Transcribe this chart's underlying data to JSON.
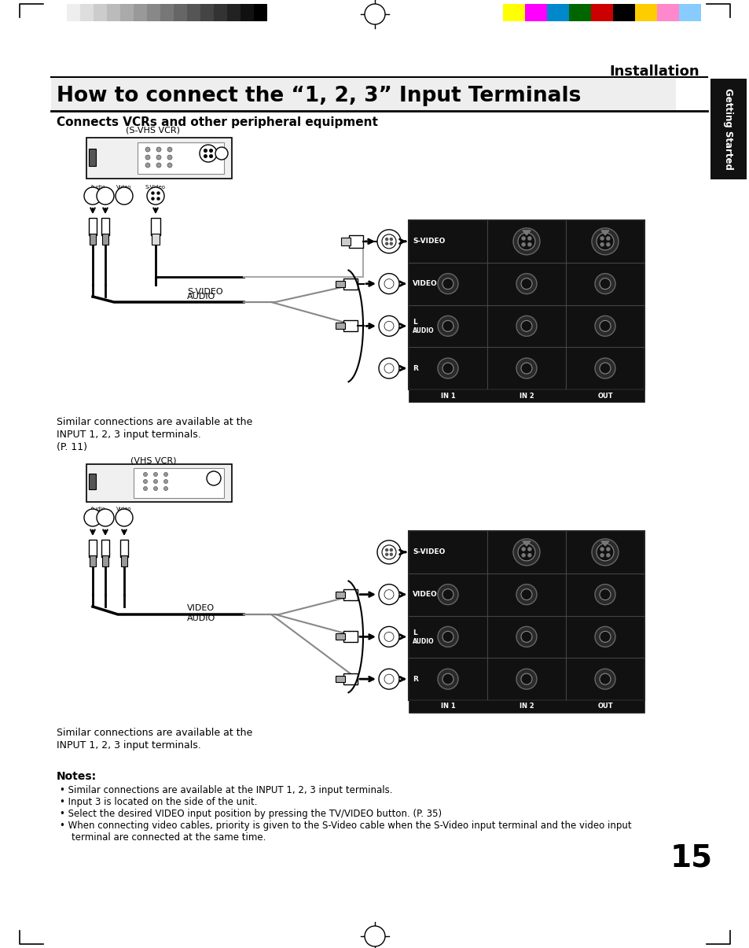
{
  "title": "How to connect the “1, 2, 3” Input Terminals",
  "subtitle": "Connects VCRs and other peripheral equipment",
  "section_label": "Installation",
  "side_label": "Getting Started",
  "page_number": "15",
  "notes_title": "Notes:",
  "notes": [
    "Similar connections are available at the INPUT 1, 2, 3 input terminals.",
    "Input 3 is located on the side of the unit.",
    "Select the desired VIDEO input position by pressing the TV/VIDEO button. (P. 35)",
    "When connecting video cables, priority is given to the S-Video cable when the S-Video input terminal and the video input\n    terminal are connected at the same time."
  ],
  "diagram1_label": "(S-VHS VCR)",
  "diagram1_text1": "Similar connections are available at the",
  "diagram1_text2": "INPUT 1, 2, 3 input terminals.",
  "diagram1_text3": "(P. 11)",
  "diagram2_label": "(VHS VCR)",
  "diagram2_text1": "Similar connections are available at the",
  "diagram2_text2": "INPUT 1, 2, 3 input terminals.",
  "bg_color": "#ffffff",
  "text_color": "#000000",
  "dark_bg": "#1a1a1a",
  "panel_bottom_labels": [
    "IN 1",
    "IN 2",
    "OUT"
  ],
  "grayscale_colors": [
    "#ffffff",
    "#eeeeee",
    "#dddddd",
    "#cccccc",
    "#bbbbbb",
    "#aaaaaa",
    "#999999",
    "#888888",
    "#777777",
    "#666666",
    "#555555",
    "#444444",
    "#333333",
    "#222222",
    "#111111",
    "#000000"
  ],
  "color_swatches": [
    "#ffff00",
    "#ff00ff",
    "#0088cc",
    "#006600",
    "#cc0000",
    "#000000",
    "#ffcc00",
    "#ff88cc",
    "#88ccff"
  ]
}
